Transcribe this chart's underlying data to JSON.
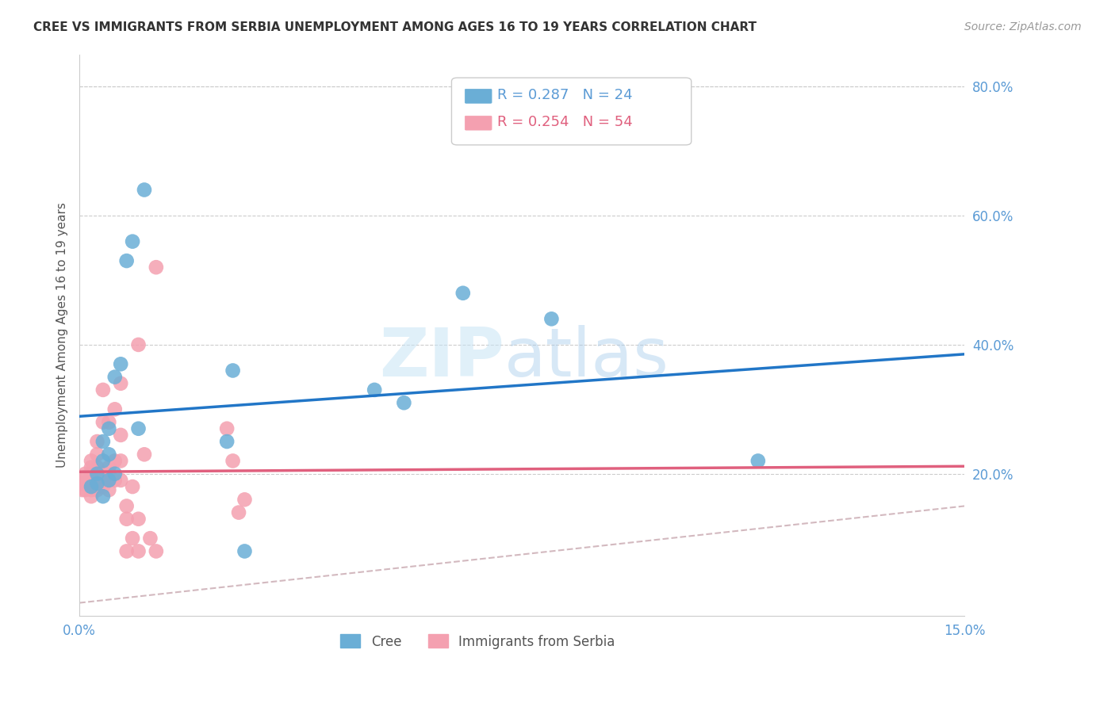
{
  "title": "CREE VS IMMIGRANTS FROM SERBIA UNEMPLOYMENT AMONG AGES 16 TO 19 YEARS CORRELATION CHART",
  "source": "Source: ZipAtlas.com",
  "ylabel": "Unemployment Among Ages 16 to 19 years",
  "xlim": [
    0.0,
    0.15
  ],
  "ylim": [
    -0.02,
    0.85
  ],
  "yticks_right": [
    0.2,
    0.4,
    0.6,
    0.8
  ],
  "ytick_right_labels": [
    "20.0%",
    "40.0%",
    "60.0%",
    "80.0%"
  ],
  "cree_color": "#6aaed6",
  "serbia_color": "#f4a0b0",
  "cree_line_color": "#2176c7",
  "serbia_line_color": "#e0607e",
  "diag_line_color": "#c8a8b0",
  "legend_R1": "0.287",
  "legend_N1": "24",
  "legend_R2": "0.254",
  "legend_N2": "54",
  "legend_label1": "Cree",
  "legend_label2": "Immigrants from Serbia",
  "cree_x": [
    0.002,
    0.003,
    0.003,
    0.004,
    0.004,
    0.004,
    0.005,
    0.005,
    0.005,
    0.006,
    0.006,
    0.007,
    0.008,
    0.009,
    0.01,
    0.011,
    0.025,
    0.026,
    0.028,
    0.05,
    0.055,
    0.065,
    0.08,
    0.115
  ],
  "cree_y": [
    0.18,
    0.185,
    0.2,
    0.165,
    0.22,
    0.25,
    0.19,
    0.23,
    0.27,
    0.2,
    0.35,
    0.37,
    0.53,
    0.56,
    0.27,
    0.64,
    0.25,
    0.36,
    0.08,
    0.33,
    0.31,
    0.48,
    0.44,
    0.22
  ],
  "serbia_x": [
    0.0005,
    0.0005,
    0.001,
    0.001,
    0.001,
    0.001,
    0.001,
    0.002,
    0.002,
    0.002,
    0.002,
    0.002,
    0.002,
    0.002,
    0.002,
    0.003,
    0.003,
    0.003,
    0.003,
    0.003,
    0.003,
    0.003,
    0.004,
    0.004,
    0.004,
    0.004,
    0.005,
    0.005,
    0.005,
    0.005,
    0.005,
    0.006,
    0.006,
    0.006,
    0.007,
    0.007,
    0.007,
    0.007,
    0.008,
    0.008,
    0.008,
    0.009,
    0.009,
    0.01,
    0.01,
    0.01,
    0.011,
    0.012,
    0.013,
    0.013,
    0.025,
    0.026,
    0.027,
    0.028
  ],
  "serbia_y": [
    0.175,
    0.185,
    0.175,
    0.185,
    0.185,
    0.195,
    0.2,
    0.165,
    0.175,
    0.185,
    0.185,
    0.19,
    0.2,
    0.21,
    0.22,
    0.175,
    0.18,
    0.185,
    0.2,
    0.21,
    0.23,
    0.25,
    0.18,
    0.19,
    0.28,
    0.33,
    0.175,
    0.19,
    0.2,
    0.21,
    0.28,
    0.19,
    0.22,
    0.3,
    0.19,
    0.22,
    0.26,
    0.34,
    0.08,
    0.13,
    0.15,
    0.1,
    0.18,
    0.08,
    0.13,
    0.4,
    0.23,
    0.1,
    0.08,
    0.52,
    0.27,
    0.22,
    0.14,
    0.16
  ]
}
